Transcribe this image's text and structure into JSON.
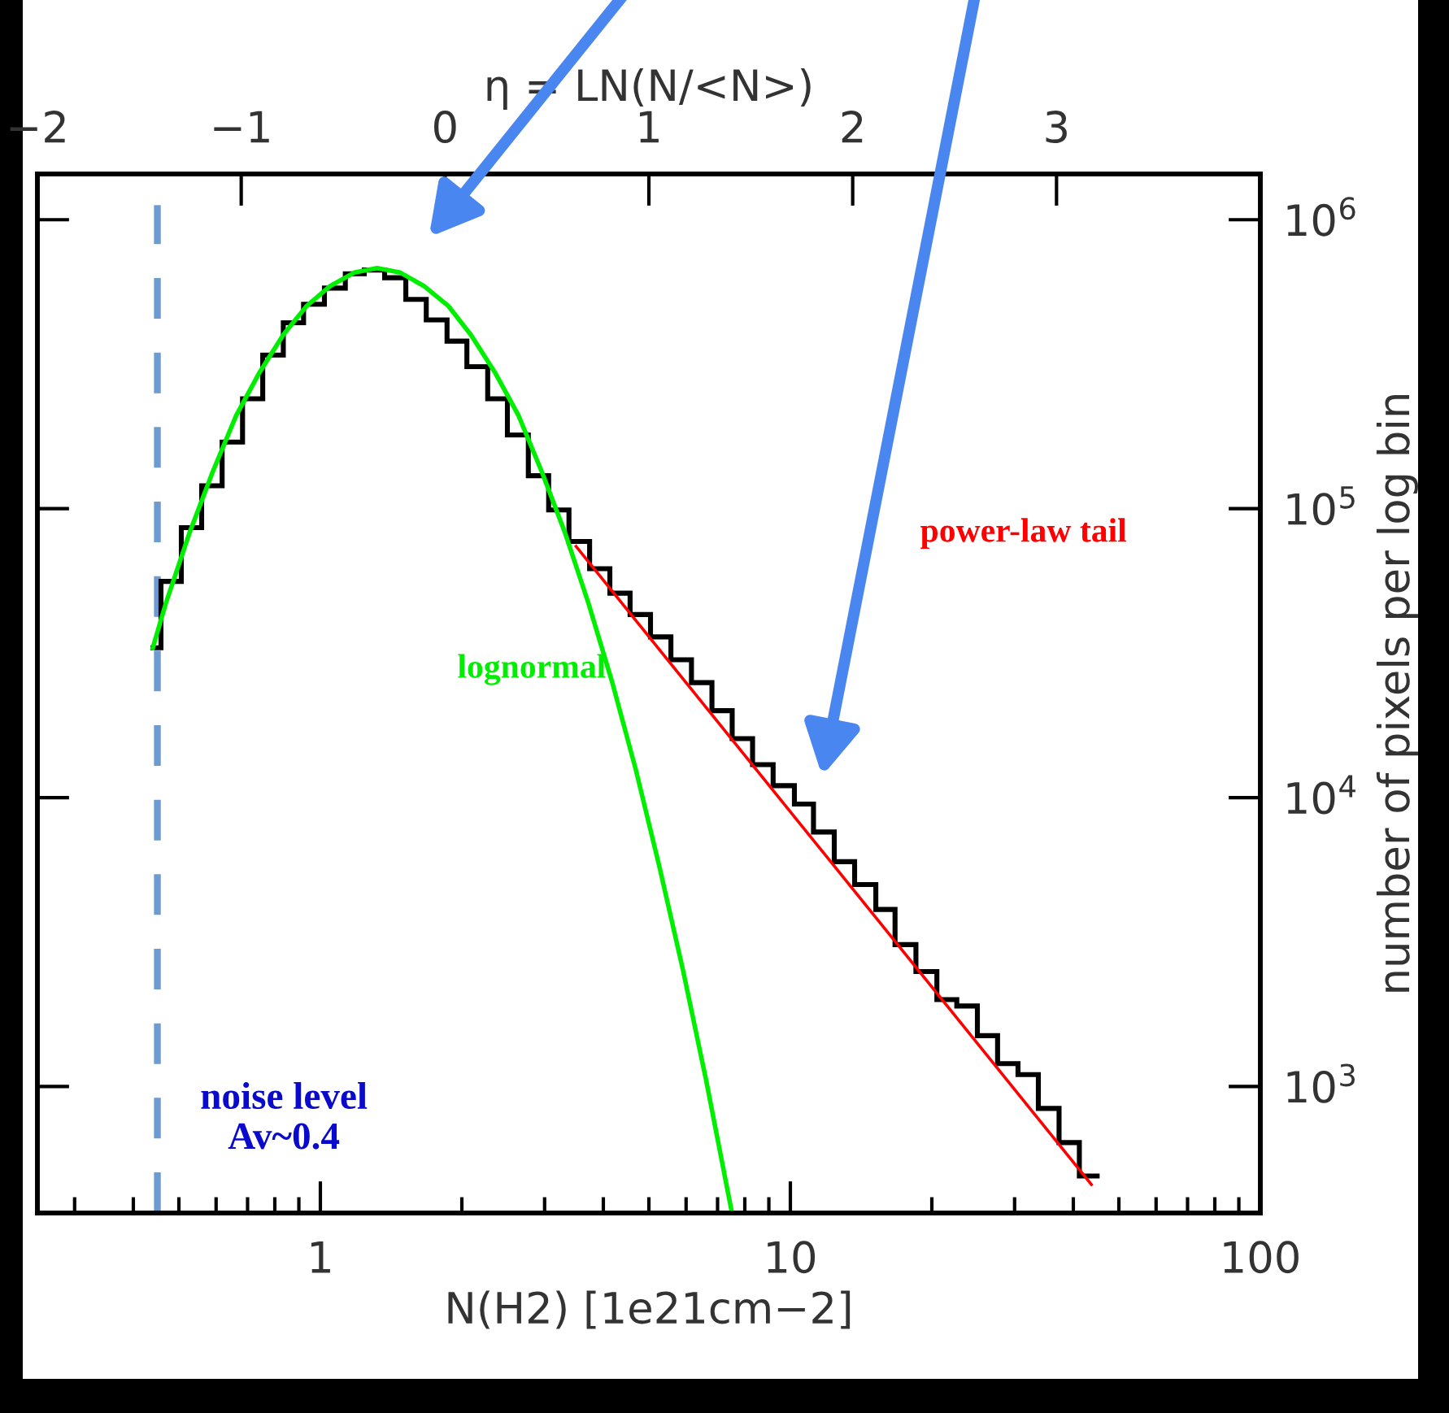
{
  "chart_data": {
    "type": "histogram",
    "xlabel": "N(H2) [1e21cm−2]",
    "ylabel": "number of pixels per log bin",
    "x2label": "η = LN(N/<N>)",
    "log": "xy",
    "xlim": [
      0.25,
      100
    ],
    "xticks": [
      1,
      10,
      100
    ],
    "ylim": [
      365,
      1440000
    ],
    "yticks": [
      {
        "value": 1000,
        "label": "10$^{3}$"
      },
      {
        "value": 10000,
        "label": "10$^{4}$"
      },
      {
        "value": 100000,
        "label": "10$^{5}$"
      },
      {
        "value": 1000000,
        "label": "10$^{6}$"
      }
    ],
    "x2lim": [
      -2,
      4
    ],
    "x2ticks": [
      {
        "value": -2,
        "label": "−2"
      },
      {
        "value": -1,
        "label": "−1"
      },
      0,
      1,
      2,
      3
    ],
    "grid": false,
    "marker": "none",
    "ref_lines": [
      {
        "axis": "x",
        "value": 0.45,
        "label": "noise level\nAv~0.4",
        "color": "#6b9bd1",
        "line_style": "dashed"
      }
    ],
    "series": [
      {
        "color": "#000000",
        "bins": [
          0.435,
          0.458,
          0.506,
          0.559,
          0.618,
          0.683,
          0.754,
          0.834,
          0.921,
          1.02,
          1.13,
          1.24,
          1.37,
          1.52,
          1.68,
          1.86,
          2.05,
          2.27,
          2.5,
          2.77,
          3.06,
          3.38,
          3.74,
          4.13,
          4.56,
          5.04,
          5.57,
          6.16,
          6.81,
          7.52,
          8.31,
          9.19,
          10.2,
          11.2,
          12.4,
          13.7,
          15.2,
          16.7,
          18.5,
          20.5,
          22.6,
          25.0,
          27.6,
          30.5,
          33.7,
          37.3,
          41.2,
          45.5
        ],
        "values": [
          33000,
          56000,
          86000,
          120000,
          170000,
          240000,
          340000,
          440000,
          510000,
          580000,
          650000,
          670000,
          630000,
          530000,
          450000,
          380000,
          310000,
          240000,
          180000,
          130000,
          99000,
          77000,
          62000,
          51000,
          43000,
          36000,
          30000,
          25000,
          20000,
          16000,
          13000,
          11000,
          9500,
          7600,
          6000,
          5000,
          4100,
          3100,
          2500,
          2000,
          1900,
          1500,
          1200,
          1100,
          840,
          640,
          490
        ]
      },
      {
        "type": "line",
        "name": "lognormal",
        "color": "#00ee00",
        "x": [
          0.44,
          0.469,
          0.526,
          0.59,
          0.662,
          0.743,
          0.834,
          0.936,
          1.05,
          1.18,
          1.32,
          1.48,
          1.66,
          1.87,
          2.09,
          2.35,
          2.64,
          2.96,
          3.32,
          3.72,
          4.18,
          4.69,
          5.26,
          5.9,
          6.62,
          7.5
        ],
        "values": [
          33000,
          47000,
          82000,
          134000,
          210000,
          297000,
          400000,
          504000,
          590000,
          656000,
          680000,
          656000,
          590000,
          504000,
          400000,
          297000,
          210000,
          134000,
          82000,
          47000,
          25000,
          12500,
          5800,
          2560,
          1050,
          370
        ]
      },
      {
        "type": "line",
        "name": "power-law tail",
        "color": "#ff0000",
        "x": [
          3.5,
          43.7
        ],
        "values": [
          74000,
          458
        ]
      }
    ]
  }
}
